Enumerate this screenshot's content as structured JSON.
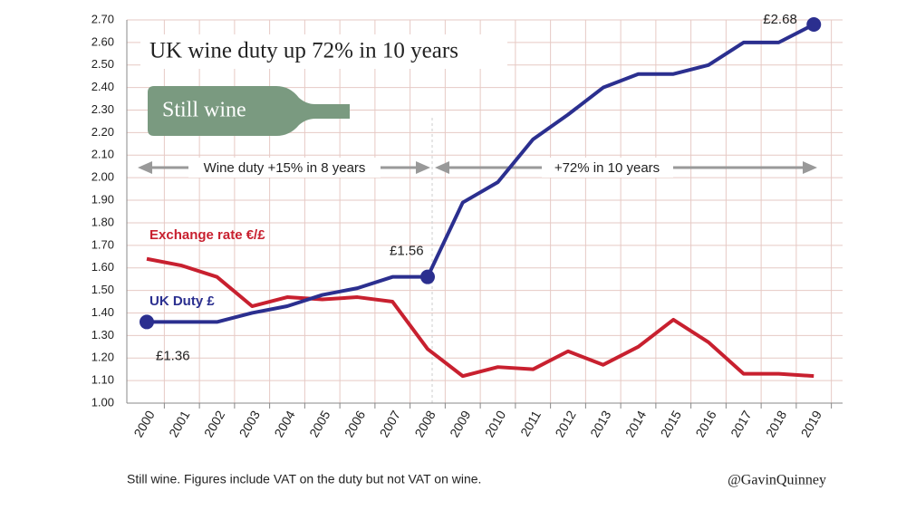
{
  "chart_data": {
    "type": "line",
    "title": "UK wine duty up 72% in 10 years",
    "subtitle": "Still wine",
    "annotations": [
      "Wine duty +15% in 8 years",
      "+72% in 10 years"
    ],
    "footnote": "Still wine. Figures include VAT on the duty but not VAT on wine.",
    "credit": "@GavinQuinney",
    "categories": [
      "2000",
      "2001",
      "2002",
      "2003",
      "2004",
      "2005",
      "2006",
      "2007",
      "2008",
      "2009",
      "2010",
      "2011",
      "2012",
      "2013",
      "2014",
      "2015",
      "2016",
      "2017",
      "2018",
      "2019"
    ],
    "series": [
      {
        "name": "UK Duty £",
        "color": "#2b2f8f",
        "values": [
          1.36,
          1.36,
          1.36,
          1.4,
          1.43,
          1.48,
          1.51,
          1.56,
          1.56,
          1.89,
          1.98,
          2.17,
          2.28,
          2.4,
          2.46,
          2.46,
          2.5,
          2.6,
          2.6,
          2.68
        ],
        "value_labels": [
          "£1.36",
          null,
          null,
          null,
          null,
          null,
          null,
          null,
          "£1.56",
          null,
          null,
          null,
          null,
          null,
          null,
          null,
          null,
          null,
          null,
          "£2.68"
        ]
      },
      {
        "name": "Exchange rate €/£",
        "color": "#c8202f",
        "values": [
          1.64,
          1.61,
          1.56,
          1.43,
          1.47,
          1.46,
          1.47,
          1.45,
          1.24,
          1.12,
          1.16,
          1.15,
          1.23,
          1.17,
          1.25,
          1.37,
          1.27,
          1.13,
          1.13,
          1.12
        ]
      }
    ],
    "ylim": [
      1.0,
      2.7
    ],
    "yticks": [
      {
        "value": 1.0,
        "label": "1.00"
      },
      {
        "value": 1.1,
        "label": "1.10"
      },
      {
        "value": 1.2,
        "label": "1.20"
      },
      {
        "value": 1.3,
        "label": "1.30"
      },
      {
        "value": 1.4,
        "label": "1.40"
      },
      {
        "value": 1.5,
        "label": "1.50"
      },
      {
        "value": 1.6,
        "label": "1.60"
      },
      {
        "value": 1.7,
        "label": "1.70"
      },
      {
        "value": 1.8,
        "label": "1.80"
      },
      {
        "value": 1.9,
        "label": "1.90"
      },
      {
        "value": 2.0,
        "label": "2.00"
      },
      {
        "value": 2.1,
        "label": "2.10"
      },
      {
        "value": 2.2,
        "label": "2.20"
      },
      {
        "value": 2.3,
        "label": "2.30"
      },
      {
        "value": 2.4,
        "label": "2.40"
      },
      {
        "value": 2.5,
        "label": "2.50"
      },
      {
        "value": 2.6,
        "label": "2.60"
      },
      {
        "value": 2.7,
        "label": "2.70"
      }
    ],
    "grid": true
  }
}
